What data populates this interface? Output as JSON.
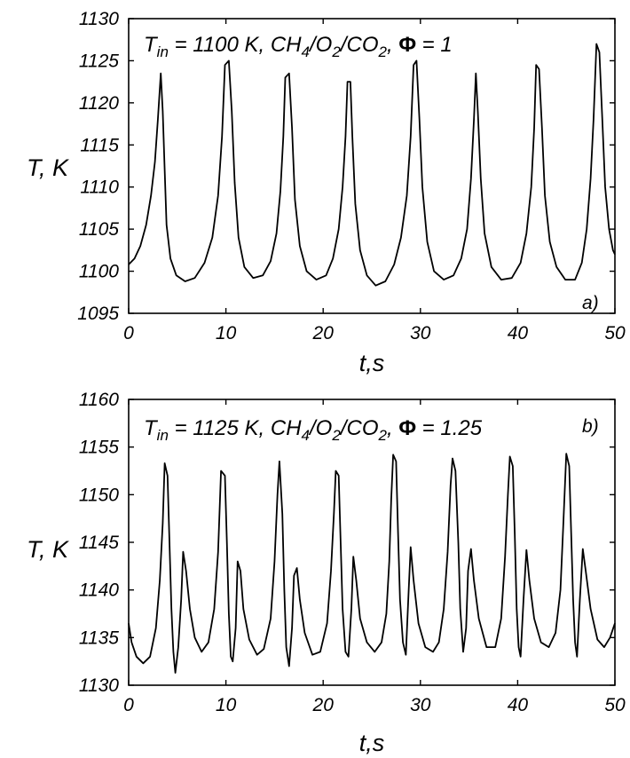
{
  "chart_data": [
    {
      "type": "line",
      "panel_label": "a)",
      "annotation": {
        "parts": [
          {
            "text": "T",
            "style": "normal"
          },
          {
            "text": "in",
            "style": "sub"
          },
          {
            "text": " = 1100 K, CH",
            "style": "normal"
          },
          {
            "text": "4",
            "style": "sub"
          },
          {
            "text": "/O",
            "style": "normal"
          },
          {
            "text": "2",
            "style": "sub"
          },
          {
            "text": "/CO",
            "style": "normal"
          },
          {
            "text": "2",
            "style": "sub"
          },
          {
            "text": ", ",
            "style": "normal"
          },
          {
            "text": "Φ",
            "style": "phi"
          },
          {
            "text": " =  1",
            "style": "normal"
          }
        ]
      },
      "xlabel": "t,s",
      "ylabel": "T, K",
      "xlim": [
        0,
        50
      ],
      "ylim": [
        1095,
        1130
      ],
      "xticks": [
        0,
        10,
        20,
        30,
        40,
        50
      ],
      "yticks": [
        1095,
        1100,
        1105,
        1110,
        1115,
        1120,
        1125,
        1130
      ],
      "points": [
        [
          0,
          1100.8
        ],
        [
          0.6,
          1101.5
        ],
        [
          1.2,
          1103.0
        ],
        [
          1.8,
          1105.5
        ],
        [
          2.3,
          1109.0
        ],
        [
          2.7,
          1113.0
        ],
        [
          3.0,
          1118.0
        ],
        [
          3.3,
          1123.5
        ],
        [
          3.5,
          1119.0
        ],
        [
          3.7,
          1112.0
        ],
        [
          3.9,
          1105.5
        ],
        [
          4.3,
          1101.5
        ],
        [
          4.9,
          1099.5
        ],
        [
          5.8,
          1098.8
        ],
        [
          6.8,
          1099.2
        ],
        [
          7.8,
          1101.0
        ],
        [
          8.6,
          1104.0
        ],
        [
          9.2,
          1109.0
        ],
        [
          9.6,
          1116.0
        ],
        [
          9.9,
          1124.5
        ],
        [
          10.3,
          1125.0
        ],
        [
          10.6,
          1119.0
        ],
        [
          10.9,
          1110.5
        ],
        [
          11.3,
          1104.0
        ],
        [
          11.9,
          1100.5
        ],
        [
          12.8,
          1099.2
        ],
        [
          13.8,
          1099.5
        ],
        [
          14.6,
          1101.2
        ],
        [
          15.2,
          1104.5
        ],
        [
          15.6,
          1109.5
        ],
        [
          15.9,
          1116.0
        ],
        [
          16.1,
          1123.0
        ],
        [
          16.5,
          1123.5
        ],
        [
          16.8,
          1117.0
        ],
        [
          17.1,
          1108.5
        ],
        [
          17.6,
          1103.0
        ],
        [
          18.3,
          1100.0
        ],
        [
          19.3,
          1099.0
        ],
        [
          20.3,
          1099.5
        ],
        [
          21.0,
          1101.5
        ],
        [
          21.6,
          1105.0
        ],
        [
          22.0,
          1110.0
        ],
        [
          22.3,
          1116.0
        ],
        [
          22.5,
          1122.5
        ],
        [
          22.8,
          1122.5
        ],
        [
          23.0,
          1116.0
        ],
        [
          23.3,
          1108.0
        ],
        [
          23.8,
          1102.5
        ],
        [
          24.5,
          1099.5
        ],
        [
          25.4,
          1098.3
        ],
        [
          26.4,
          1098.8
        ],
        [
          27.3,
          1100.8
        ],
        [
          28.0,
          1104.0
        ],
        [
          28.6,
          1109.0
        ],
        [
          29.0,
          1116.0
        ],
        [
          29.3,
          1124.5
        ],
        [
          29.6,
          1125.0
        ],
        [
          29.9,
          1118.0
        ],
        [
          30.2,
          1110.0
        ],
        [
          30.7,
          1103.5
        ],
        [
          31.4,
          1100.0
        ],
        [
          32.4,
          1099.0
        ],
        [
          33.4,
          1099.5
        ],
        [
          34.2,
          1101.5
        ],
        [
          34.8,
          1105.0
        ],
        [
          35.2,
          1111.0
        ],
        [
          35.5,
          1118.0
        ],
        [
          35.7,
          1123.5
        ],
        [
          35.9,
          1119.0
        ],
        [
          36.2,
          1111.0
        ],
        [
          36.6,
          1104.5
        ],
        [
          37.3,
          1100.5
        ],
        [
          38.3,
          1099.0
        ],
        [
          39.4,
          1099.2
        ],
        [
          40.3,
          1101.0
        ],
        [
          40.9,
          1104.5
        ],
        [
          41.4,
          1110.0
        ],
        [
          41.7,
          1117.0
        ],
        [
          41.9,
          1124.5
        ],
        [
          42.2,
          1124.0
        ],
        [
          42.5,
          1117.0
        ],
        [
          42.8,
          1109.0
        ],
        [
          43.3,
          1103.5
        ],
        [
          44.0,
          1100.5
        ],
        [
          44.9,
          1099.0
        ],
        [
          45.9,
          1099.0
        ],
        [
          46.6,
          1101.0
        ],
        [
          47.1,
          1105.0
        ],
        [
          47.5,
          1111.0
        ],
        [
          47.8,
          1118.0
        ],
        [
          48.1,
          1127.0
        ],
        [
          48.4,
          1126.0
        ],
        [
          48.7,
          1118.0
        ],
        [
          49.0,
          1110.0
        ],
        [
          49.4,
          1105.0
        ],
        [
          49.8,
          1102.5
        ],
        [
          50.0,
          1102.0
        ]
      ]
    },
    {
      "type": "line",
      "panel_label": "b)",
      "annotation": {
        "parts": [
          {
            "text": "T",
            "style": "normal"
          },
          {
            "text": "in",
            "style": "sub"
          },
          {
            "text": "  = 1125 K, CH",
            "style": "normal"
          },
          {
            "text": "4",
            "style": "sub"
          },
          {
            "text": "/O",
            "style": "normal"
          },
          {
            "text": "2",
            "style": "sub"
          },
          {
            "text": "/CO",
            "style": "normal"
          },
          {
            "text": "2",
            "style": "sub"
          },
          {
            "text": ", ",
            "style": "normal"
          },
          {
            "text": "Φ",
            "style": "phi"
          },
          {
            "text": " =  1.25",
            "style": "normal"
          }
        ]
      },
      "xlabel": "t,s",
      "ylabel": "T, K",
      "xlim": [
        0,
        50
      ],
      "ylim": [
        1130,
        1160
      ],
      "xticks": [
        0,
        10,
        20,
        30,
        40,
        50
      ],
      "yticks": [
        1130,
        1135,
        1140,
        1145,
        1150,
        1155,
        1160
      ],
      "points": [
        [
          0,
          1136.5
        ],
        [
          0.3,
          1134.5
        ],
        [
          0.8,
          1133.0
        ],
        [
          1.5,
          1132.3
        ],
        [
          2.2,
          1133.0
        ],
        [
          2.8,
          1136.0
        ],
        [
          3.2,
          1141.0
        ],
        [
          3.5,
          1147.0
        ],
        [
          3.7,
          1153.3
        ],
        [
          4.0,
          1152.0
        ],
        [
          4.2,
          1145.0
        ],
        [
          4.4,
          1138.0
        ],
        [
          4.6,
          1133.5
        ],
        [
          4.8,
          1131.3
        ],
        [
          5.1,
          1134.0
        ],
        [
          5.4,
          1139.0
        ],
        [
          5.6,
          1144.0
        ],
        [
          5.9,
          1142.0
        ],
        [
          6.3,
          1138.0
        ],
        [
          6.8,
          1135.0
        ],
        [
          7.5,
          1133.5
        ],
        [
          8.2,
          1134.5
        ],
        [
          8.8,
          1138.0
        ],
        [
          9.2,
          1144.0
        ],
        [
          9.5,
          1152.5
        ],
        [
          9.9,
          1152.0
        ],
        [
          10.1,
          1145.0
        ],
        [
          10.3,
          1137.5
        ],
        [
          10.5,
          1133.0
        ],
        [
          10.7,
          1132.5
        ],
        [
          11.0,
          1136.0
        ],
        [
          11.2,
          1143.0
        ],
        [
          11.5,
          1142.0
        ],
        [
          11.8,
          1138.0
        ],
        [
          12.4,
          1134.8
        ],
        [
          13.2,
          1133.2
        ],
        [
          13.9,
          1133.8
        ],
        [
          14.6,
          1137.0
        ],
        [
          15.0,
          1143.0
        ],
        [
          15.3,
          1150.0
        ],
        [
          15.5,
          1153.5
        ],
        [
          15.8,
          1148.0
        ],
        [
          16.0,
          1140.0
        ],
        [
          16.2,
          1134.0
        ],
        [
          16.5,
          1132.0
        ],
        [
          16.8,
          1136.0
        ],
        [
          17.0,
          1141.5
        ],
        [
          17.3,
          1142.3
        ],
        [
          17.6,
          1139.0
        ],
        [
          18.1,
          1135.5
        ],
        [
          18.9,
          1133.2
        ],
        [
          19.7,
          1133.5
        ],
        [
          20.4,
          1136.5
        ],
        [
          20.8,
          1142.0
        ],
        [
          21.1,
          1148.0
        ],
        [
          21.3,
          1152.5
        ],
        [
          21.6,
          1152.0
        ],
        [
          21.8,
          1145.0
        ],
        [
          22.0,
          1138.0
        ],
        [
          22.3,
          1133.5
        ],
        [
          22.6,
          1133.0
        ],
        [
          22.9,
          1138.0
        ],
        [
          23.1,
          1143.5
        ],
        [
          23.4,
          1141.0
        ],
        [
          23.8,
          1137.0
        ],
        [
          24.5,
          1134.5
        ],
        [
          25.3,
          1133.5
        ],
        [
          26.0,
          1134.5
        ],
        [
          26.5,
          1137.5
        ],
        [
          26.8,
          1143.0
        ],
        [
          27.0,
          1149.5
        ],
        [
          27.2,
          1154.2
        ],
        [
          27.5,
          1153.5
        ],
        [
          27.7,
          1146.0
        ],
        [
          27.9,
          1139.0
        ],
        [
          28.2,
          1134.5
        ],
        [
          28.5,
          1133.2
        ],
        [
          28.8,
          1140.0
        ],
        [
          29.0,
          1144.5
        ],
        [
          29.3,
          1141.0
        ],
        [
          29.8,
          1136.5
        ],
        [
          30.5,
          1134.0
        ],
        [
          31.3,
          1133.5
        ],
        [
          31.9,
          1134.5
        ],
        [
          32.4,
          1138.0
        ],
        [
          32.8,
          1144.0
        ],
        [
          33.1,
          1151.0
        ],
        [
          33.3,
          1153.8
        ],
        [
          33.6,
          1152.5
        ],
        [
          33.9,
          1145.0
        ],
        [
          34.1,
          1138.0
        ],
        [
          34.4,
          1133.5
        ],
        [
          34.7,
          1136.0
        ],
        [
          34.9,
          1142.0
        ],
        [
          35.2,
          1144.3
        ],
        [
          35.5,
          1141.0
        ],
        [
          36.0,
          1137.0
        ],
        [
          36.8,
          1134.0
        ],
        [
          37.7,
          1134.0
        ],
        [
          38.3,
          1137.0
        ],
        [
          38.7,
          1143.5
        ],
        [
          39.0,
          1150.0
        ],
        [
          39.2,
          1154.0
        ],
        [
          39.5,
          1153.0
        ],
        [
          39.7,
          1146.0
        ],
        [
          39.9,
          1138.0
        ],
        [
          40.1,
          1134.0
        ],
        [
          40.3,
          1133.0
        ],
        [
          40.6,
          1139.0
        ],
        [
          40.9,
          1144.2
        ],
        [
          41.2,
          1141.0
        ],
        [
          41.7,
          1137.0
        ],
        [
          42.4,
          1134.5
        ],
        [
          43.2,
          1134.0
        ],
        [
          43.9,
          1135.5
        ],
        [
          44.4,
          1140.0
        ],
        [
          44.7,
          1147.0
        ],
        [
          45.0,
          1154.3
        ],
        [
          45.3,
          1153.0
        ],
        [
          45.5,
          1146.0
        ],
        [
          45.7,
          1139.0
        ],
        [
          45.9,
          1134.5
        ],
        [
          46.1,
          1133.0
        ],
        [
          46.4,
          1139.0
        ],
        [
          46.7,
          1144.3
        ],
        [
          47.0,
          1142.0
        ],
        [
          47.5,
          1138.0
        ],
        [
          48.2,
          1134.8
        ],
        [
          48.9,
          1134.0
        ],
        [
          49.5,
          1135.0
        ],
        [
          50.0,
          1136.5
        ]
      ]
    }
  ]
}
